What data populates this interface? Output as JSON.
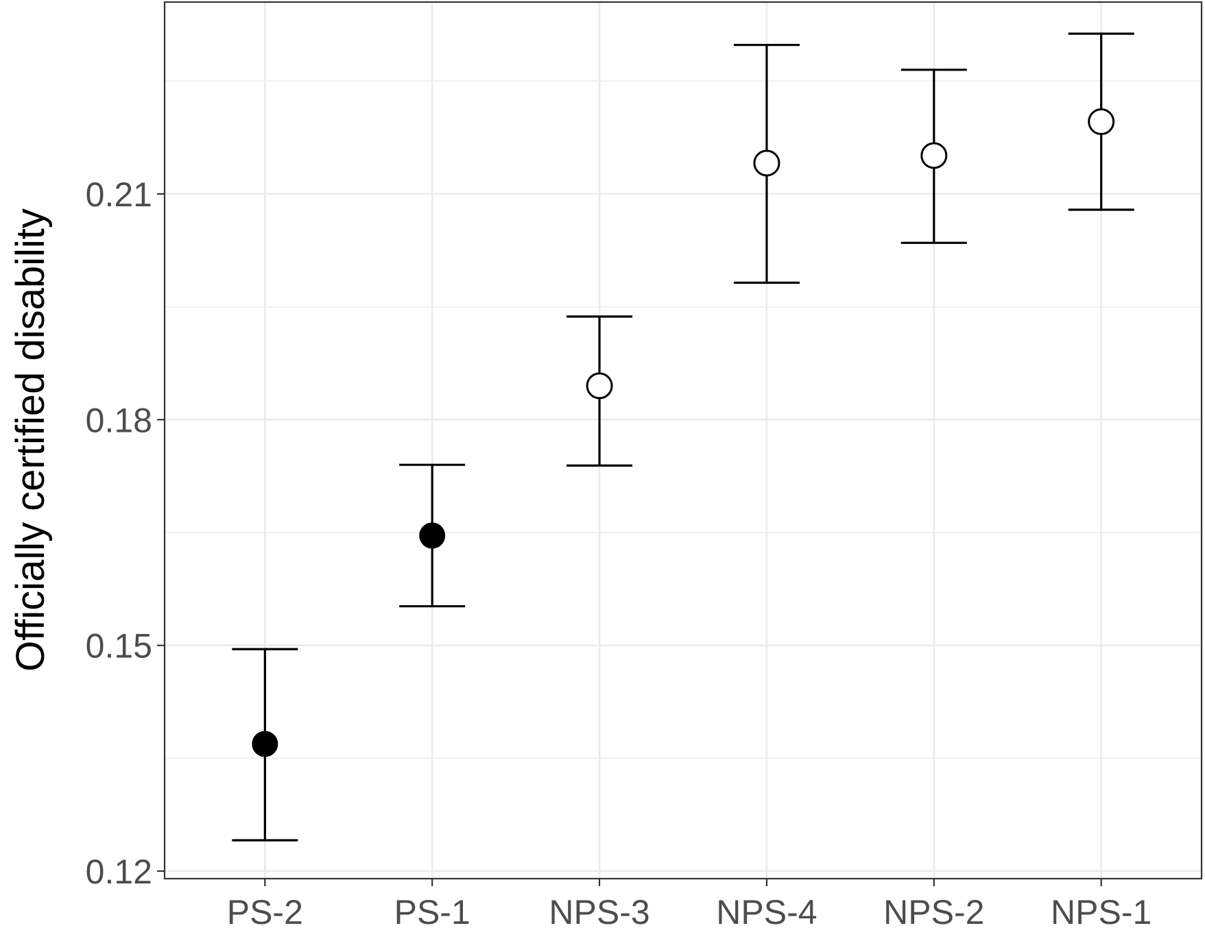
{
  "chart_data": {
    "type": "scatter",
    "title": "",
    "xlabel": "",
    "ylabel": "Officially certified disability",
    "categories": [
      "PS-2",
      "PS-1",
      "NPS-3",
      "NPS-4",
      "NPS-2",
      "NPS-1"
    ],
    "estimate": [
      0.1369,
      0.1646,
      0.1845,
      0.2141,
      0.2151,
      0.2196
    ],
    "lower": [
      0.1241,
      0.1552,
      0.1739,
      0.1982,
      0.2035,
      0.2079
    ],
    "upper": [
      0.1495,
      0.174,
      0.1937,
      0.2298,
      0.2265,
      0.2313
    ],
    "filled": [
      true,
      true,
      false,
      false,
      false,
      false
    ],
    "ylim": [
      0.119,
      0.2355
    ],
    "yticks": [
      0.12,
      0.15,
      0.18,
      0.21
    ],
    "ytick_labels": [
      "0.12",
      "0.15",
      "0.18",
      "0.21"
    ],
    "grid": true,
    "legend": "none"
  }
}
